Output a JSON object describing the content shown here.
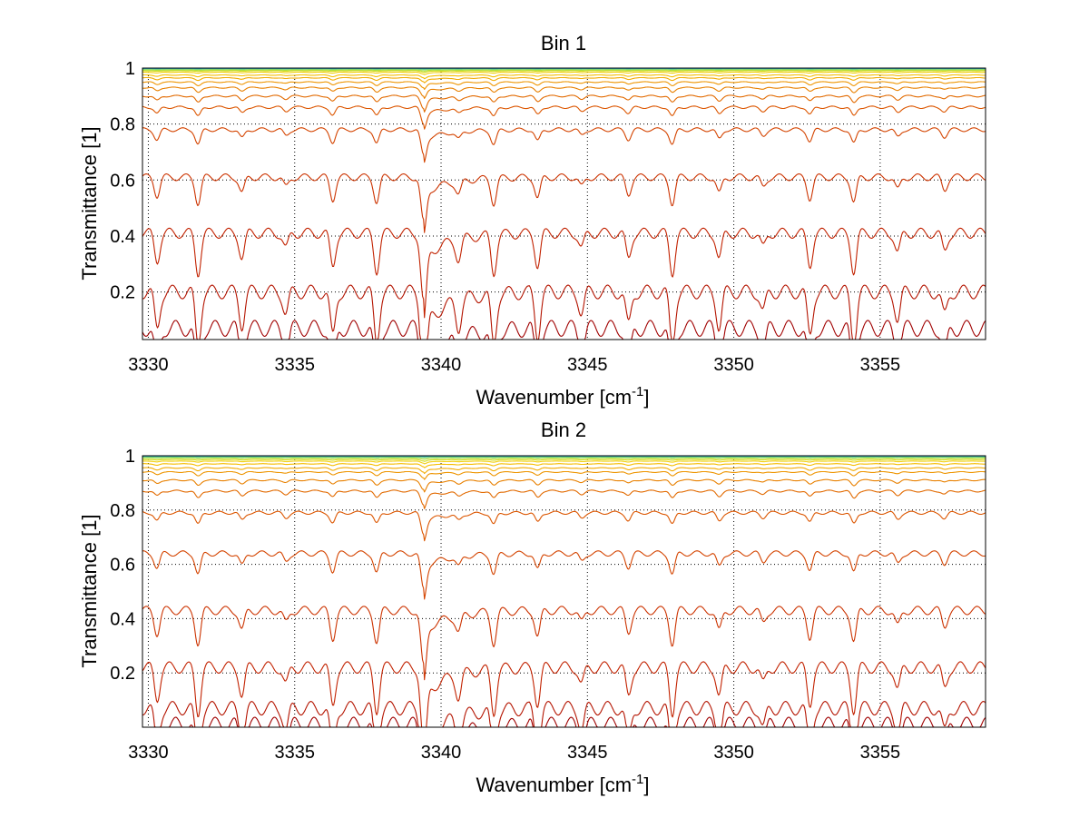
{
  "chart_data": [
    {
      "type": "line",
      "title": "Bin 1",
      "xlabel": "Wavenumber [cm",
      "xlabel_superscript": "-1",
      "xlabel_suffix": "]",
      "ylabel": "Transmittance [1]",
      "xlim": [
        3329.8,
        3358.6
      ],
      "ylim": [
        0.03,
        1.0
      ],
      "xticks": [
        3330,
        3335,
        3340,
        3345,
        3350,
        3355
      ],
      "yticks": [
        0.2,
        0.4,
        0.6,
        0.8,
        1
      ],
      "grid": true,
      "line_baselines": [
        0.07,
        0.2,
        0.41,
        0.61,
        0.78,
        0.86,
        0.9,
        0.93,
        0.95,
        0.965,
        0.975,
        0.985,
        0.99,
        0.993,
        0.996,
        0.998,
        0.999,
        1.0
      ],
      "line_colors": [
        "#a00000",
        "#b41400",
        "#c22200",
        "#cc3300",
        "#d44400",
        "#dc5600",
        "#e26a00",
        "#e88000",
        "#ee9500",
        "#f2aa00",
        "#f5bd00",
        "#f2cf10",
        "#d6dc20",
        "#b0e040",
        "#80d870",
        "#50c8a0",
        "#2fa8c8",
        "#1a80d0"
      ]
    },
    {
      "type": "line",
      "title": "Bin 2",
      "xlabel": "Wavenumber [cm",
      "xlabel_superscript": "-1",
      "xlabel_suffix": "]",
      "ylabel": "Transmittance [1]",
      "xlim": [
        3329.8,
        3358.6
      ],
      "ylim": [
        0.0,
        1.0
      ],
      "xticks": [
        3330,
        3335,
        3340,
        3345,
        3350,
        3355
      ],
      "yticks": [
        0.2,
        0.4,
        0.6,
        0.8,
        1
      ],
      "grid": true,
      "line_baselines": [
        0.01,
        0.07,
        0.22,
        0.43,
        0.64,
        0.79,
        0.87,
        0.91,
        0.94,
        0.955,
        0.97,
        0.98,
        0.986,
        0.991,
        0.995,
        0.997,
        0.999,
        1.0
      ],
      "line_colors": [
        "#a00000",
        "#b41400",
        "#c22200",
        "#cc3300",
        "#d44400",
        "#dc5600",
        "#e26a00",
        "#e88000",
        "#ee9500",
        "#f2aa00",
        "#f5bd00",
        "#f2cf10",
        "#d6dc20",
        "#b0e040",
        "#80d870",
        "#50c8a0",
        "#2fa8c8",
        "#1a80d0"
      ]
    }
  ]
}
